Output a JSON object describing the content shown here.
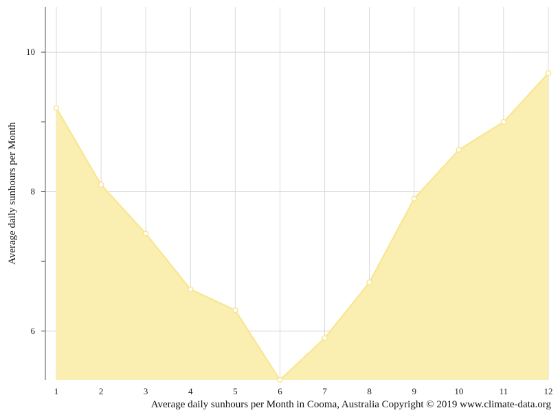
{
  "chart_data": {
    "type": "area",
    "x": [
      1,
      2,
      3,
      4,
      5,
      6,
      7,
      8,
      9,
      10,
      11,
      12
    ],
    "series": [
      {
        "values": [
          9.2,
          8.1,
          7.4,
          6.6,
          6.3,
          5.3,
          5.9,
          6.7,
          7.9,
          8.6,
          9.0,
          9.7
        ]
      }
    ],
    "ylabel": "Average daily sunhours per Month",
    "xlabel": "",
    "caption": "Average daily sunhours per Month in Cooma, Australia Copyright © 2019 www.climate-data.org",
    "xlim": [
      1,
      12
    ],
    "ylim": [
      5.3,
      10.65
    ],
    "y_ticks": [
      6,
      8,
      10
    ],
    "x_ticks": [
      1,
      2,
      3,
      4,
      5,
      6,
      7,
      8,
      9,
      10,
      11,
      12
    ],
    "grid": true,
    "colors": {
      "fill": "#faeeb0",
      "line": "#f8e58f",
      "marker_fill": "#ffffff",
      "grid": "#d8d8d8",
      "axis": "#555555"
    }
  }
}
